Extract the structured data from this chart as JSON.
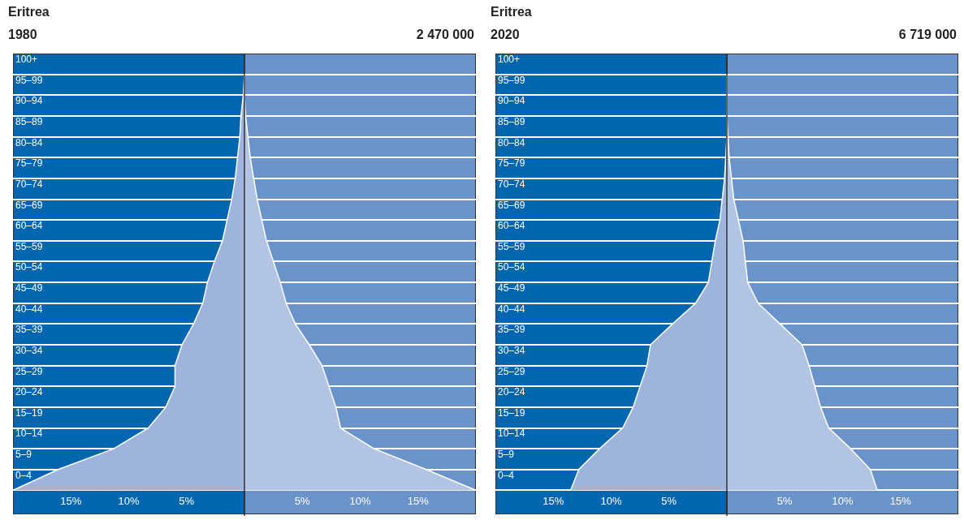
{
  "chart_data": [
    {
      "type": "area",
      "orientation": "horizontal",
      "title": "Eritrea",
      "subtitle": "1980",
      "annotations": [
        "2 470 000"
      ],
      "categories": [
        "100+",
        "95–99",
        "90–94",
        "85–89",
        "80–84",
        "75–79",
        "70–74",
        "65–69",
        "60–64",
        "55–59",
        "50–54",
        "45–49",
        "40–44",
        "35–39",
        "30–34",
        "25–29",
        "20–24",
        "15–19",
        "10–14",
        "5–9",
        "0–4"
      ],
      "series": [
        {
          "color": "#9eb4dc",
          "values": [
            0,
            -0.1,
            -0.3,
            -0.4,
            -0.6,
            -0.8,
            -1.1,
            -1.5,
            -1.9,
            -2.6,
            -3.2,
            -3.6,
            -4.4,
            -5.4,
            -6.0,
            -6.0,
            -6.8,
            -8.3,
            -11.3,
            -16.1,
            -20
          ]
        },
        {
          "color": "#b2c4e4",
          "values": [
            0,
            0,
            0.1,
            0.3,
            0.5,
            0.8,
            1.1,
            1.5,
            1.9,
            2.5,
            3.1,
            3.6,
            4.4,
            5.6,
            6.7,
            7.3,
            7.9,
            8.3,
            11.2,
            15.7,
            20
          ]
        }
      ],
      "xlim": [
        -20,
        20
      ],
      "xticks": [
        {
          "value": -15,
          "label": "15%"
        },
        {
          "value": -10,
          "label": "10%"
        },
        {
          "value": -5,
          "label": "5%"
        },
        {
          "value": 5,
          "label": "5%"
        },
        {
          "value": 10,
          "label": "10%"
        },
        {
          "value": 15,
          "label": "15%"
        }
      ],
      "ref_lines": [
        {
          "axis": "x",
          "value": 0,
          "color": "#333333"
        }
      ],
      "grid": "y",
      "marker": "none"
    },
    {
      "type": "area",
      "orientation": "horizontal",
      "title": "Eritrea",
      "subtitle": "2020",
      "annotations": [
        "6 719 000"
      ],
      "categories": [
        "100+",
        "95–99",
        "90–94",
        "85–89",
        "80–84",
        "75–79",
        "70–74",
        "65–69",
        "60–64",
        "55–59",
        "50–54",
        "45–49",
        "40–44",
        "35–39",
        "30–34",
        "25–29",
        "20–24",
        "15–19",
        "10–14",
        "5–9",
        "0–4"
      ],
      "series": [
        {
          "color": "#9eb4dc",
          "values": [
            0,
            0,
            0,
            0,
            -0.1,
            -0.2,
            -0.4,
            -0.6,
            -1.0,
            -1.3,
            -1.6,
            -2.7,
            -4.7,
            -6.6,
            -6.9,
            -7.5,
            -8.1,
            -9.0,
            -11.0,
            -12.8,
            -13.5
          ]
        },
        {
          "color": "#b2c4e4",
          "values": [
            0,
            0,
            0,
            0.1,
            0.2,
            0.4,
            0.6,
            1.0,
            1.4,
            1.6,
            1.8,
            2.7,
            4.6,
            6.5,
            7.1,
            7.6,
            8.1,
            8.8,
            10.7,
            12.4,
            13.0
          ]
        }
      ],
      "xlim": [
        -20,
        20
      ],
      "xticks": [
        {
          "value": -15,
          "label": "15%"
        },
        {
          "value": -10,
          "label": "10%"
        },
        {
          "value": -5,
          "label": "5%"
        },
        {
          "value": 5,
          "label": "5%"
        },
        {
          "value": 10,
          "label": "10%"
        },
        {
          "value": 15,
          "label": "15%"
        }
      ],
      "ref_lines": [
        {
          "axis": "x",
          "value": 0,
          "color": "#333333"
        }
      ],
      "grid": "y",
      "marker": "none"
    }
  ]
}
